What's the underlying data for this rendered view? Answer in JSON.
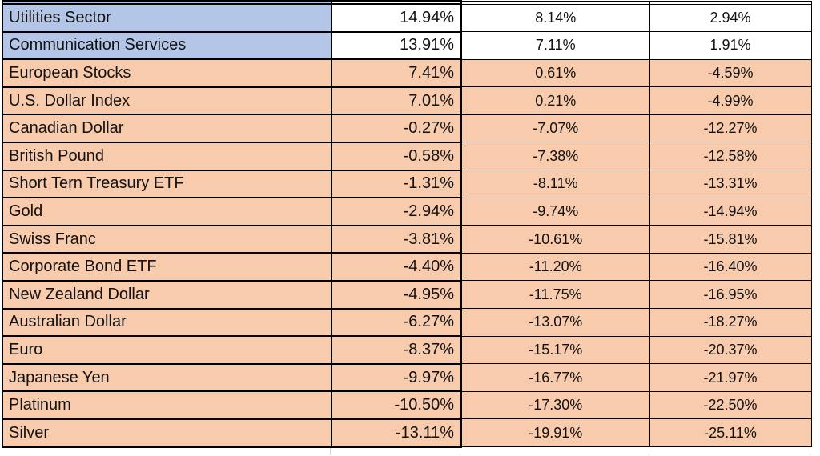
{
  "colors": {
    "blue_fill": "#B4C6E7",
    "peach_fill": "#F8CBAD",
    "border": "#000000"
  },
  "table": {
    "rows": [
      {
        "label": "Utilities Sector",
        "values": [
          "14.94%",
          "8.14%",
          "2.94%"
        ]
      },
      {
        "label": "Communication Services",
        "values": [
          "13.91%",
          "7.11%",
          "1.91%"
        ]
      },
      {
        "label": "European Stocks",
        "values": [
          "7.41%",
          "0.61%",
          "-4.59%"
        ]
      },
      {
        "label": "U.S. Dollar Index",
        "values": [
          "7.01%",
          "0.21%",
          "-4.99%"
        ]
      },
      {
        "label": "Canadian Dollar",
        "values": [
          "-0.27%",
          "-7.07%",
          "-12.27%"
        ]
      },
      {
        "label": "British Pound",
        "values": [
          "-0.58%",
          "-7.38%",
          "-12.58%"
        ]
      },
      {
        "label": "Short Tern Treasury ETF",
        "values": [
          "-1.31%",
          "-8.11%",
          "-13.31%"
        ]
      },
      {
        "label": "Gold",
        "values": [
          "-2.94%",
          "-9.74%",
          "-14.94%"
        ]
      },
      {
        "label": "Swiss Franc",
        "values": [
          "-3.81%",
          "-10.61%",
          "-15.81%"
        ]
      },
      {
        "label": "Corporate Bond ETF",
        "values": [
          "-4.40%",
          "-11.20%",
          "-16.40%"
        ]
      },
      {
        "label": "New Zealand Dollar",
        "values": [
          "-4.95%",
          "-11.75%",
          "-16.95%"
        ]
      },
      {
        "label": "Australian Dollar",
        "values": [
          "-6.27%",
          "-13.07%",
          "-18.27%"
        ]
      },
      {
        "label": "Euro",
        "values": [
          "-8.37%",
          "-15.17%",
          "-20.37%"
        ]
      },
      {
        "label": "Japanese Yen",
        "values": [
          "-9.97%",
          "-16.77%",
          "-21.97%"
        ]
      },
      {
        "label": "Platinum",
        "values": [
          "-10.50%",
          "-17.30%",
          "-22.50%"
        ]
      },
      {
        "label": "Silver",
        "values": [
          "-13.11%",
          "-19.91%",
          "-25.11%"
        ]
      }
    ]
  }
}
